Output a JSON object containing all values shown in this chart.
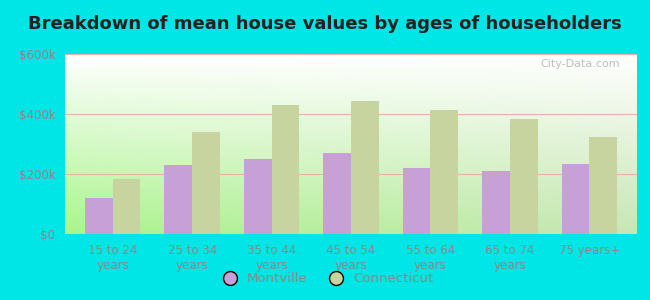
{
  "title": "Breakdown of mean house values by ages of householders",
  "categories": [
    "15 to 24\nyears",
    "25 to 34\nyears",
    "35 to 44\nyears",
    "45 to 54\nyears",
    "55 to 64\nyears",
    "65 to 74\nyears",
    "75 years+"
  ],
  "montville": [
    120000,
    230000,
    250000,
    270000,
    220000,
    210000,
    235000
  ],
  "connecticut": [
    185000,
    340000,
    430000,
    445000,
    415000,
    385000,
    325000
  ],
  "montville_color": "#c8a0d8",
  "connecticut_color": "#c8d4a0",
  "background_color": "#00e5e5",
  "ylim": [
    0,
    600000
  ],
  "yticks": [
    0,
    200000,
    400000,
    600000
  ],
  "ytick_labels": [
    "$0",
    "$200k",
    "$400k",
    "$600k"
  ],
  "title_fontsize": 13,
  "legend_labels": [
    "Montville",
    "Connecticut"
  ],
  "watermark": "City-Data.com",
  "grid_color": "#e8b0b0",
  "tick_color": "#888888"
}
